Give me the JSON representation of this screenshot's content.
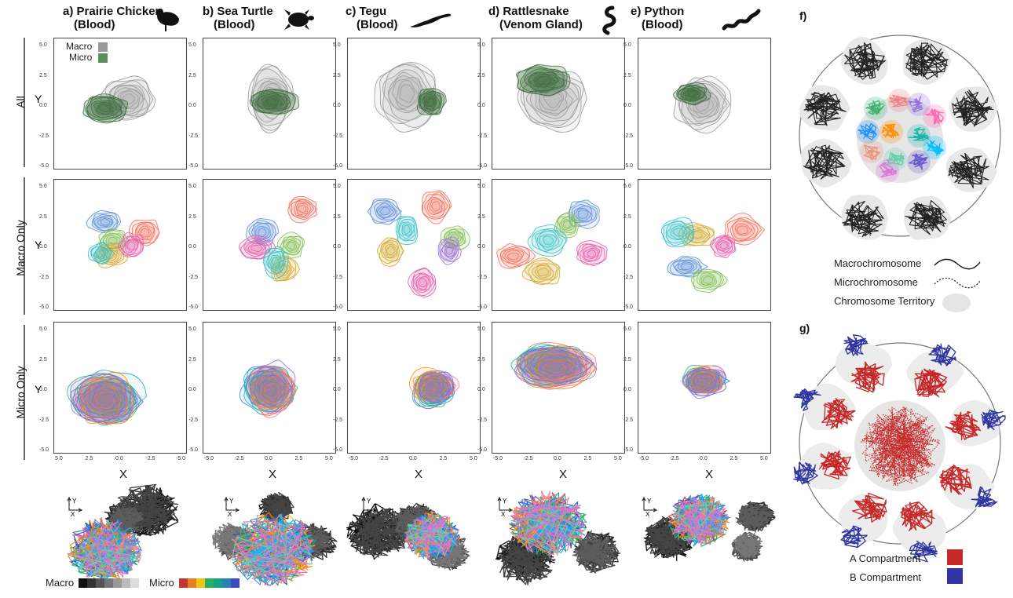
{
  "columns": [
    {
      "id": "a",
      "title_line1": "a) Prairie Chicken",
      "title_line2": "(Blood)",
      "icon": "prairie-chicken-silhouette-icon"
    },
    {
      "id": "b",
      "title_line1": "b) Sea Turtle",
      "title_line2": "(Blood)",
      "icon": "sea-turtle-silhouette-icon"
    },
    {
      "id": "c",
      "title_line1": "c) Tegu",
      "title_line2": "(Blood)",
      "icon": "tegu-silhouette-icon"
    },
    {
      "id": "d",
      "title_line1": "d) Rattlesnake",
      "title_line2": "(Venom Gland)",
      "icon": "rattlesnake-silhouette-icon"
    },
    {
      "id": "e",
      "title_line1": "e) Python",
      "title_line2": "(Blood)",
      "icon": "python-silhouette-icon"
    }
  ],
  "rows": [
    {
      "label": "All"
    },
    {
      "label": "Macro Only"
    },
    {
      "label": "Micro Only"
    }
  ],
  "axes": {
    "ylabel": "Y",
    "xlabel": "X",
    "yticks": [
      "5.0",
      "2.5",
      "0.0",
      "-2.5",
      "-5.0"
    ],
    "xticks_a": [
      "5.0",
      "2.5",
      "0.0",
      "-2.5",
      "-5.0"
    ],
    "xticks": [
      "-5.0",
      "-2.5",
      "0.0",
      "2.5",
      "5.0"
    ]
  },
  "panel_legend": {
    "macro": "Macro",
    "micro": "Micro",
    "macro_color": "#9a9a9a",
    "micro_color": "#5b8f5b"
  },
  "chart_data": {
    "type": "density-contour-grid",
    "rows": [
      "All",
      "Macro Only",
      "Micro Only"
    ],
    "columns": [
      "a) Prairie Chicken (Blood)",
      "b) Sea Turtle (Blood)",
      "c) Tegu (Blood)",
      "d) Rattlesnake (Venom Gland)",
      "e) Python (Blood)"
    ],
    "xlim": [
      -5,
      5
    ],
    "ylim": [
      -5,
      5
    ],
    "series": [
      {
        "name": "Macro",
        "color": "#9a9a9a"
      },
      {
        "name": "Micro",
        "color": "#3e6e3e"
      }
    ]
  },
  "bottom_axes_labels": {
    "x": "X",
    "y": "Y"
  },
  "bottom_legend": {
    "macro": "Macro",
    "micro": "Micro",
    "macro_colors": [
      "#111111",
      "#333333",
      "#555555",
      "#777777",
      "#999999",
      "#bbbbbb",
      "#dddddd"
    ],
    "micro_colors": [
      "#c0392b",
      "#e67e22",
      "#f1c40f",
      "#27ae60",
      "#16a085",
      "#2980b9",
      "#3b4cc0"
    ]
  },
  "panel_f": {
    "label": "f)",
    "key": [
      {
        "text": "Macrochromosome"
      },
      {
        "text": "Microchromosome"
      },
      {
        "text": "Chromosome Territory"
      }
    ]
  },
  "panel_g": {
    "label": "g)",
    "key": [
      {
        "text": "A Compartment",
        "color": "#c62828"
      },
      {
        "text": "B Compartment",
        "color": "#2e35a0"
      }
    ]
  },
  "micro_palette": [
    "#3cb371",
    "#f08080",
    "#6a5acd",
    "#1e90ff",
    "#ff69b4",
    "#20b2aa",
    "#ff8c00",
    "#9370db",
    "#00bfff",
    "#e9967a",
    "#66cdaa",
    "#da70d6"
  ]
}
